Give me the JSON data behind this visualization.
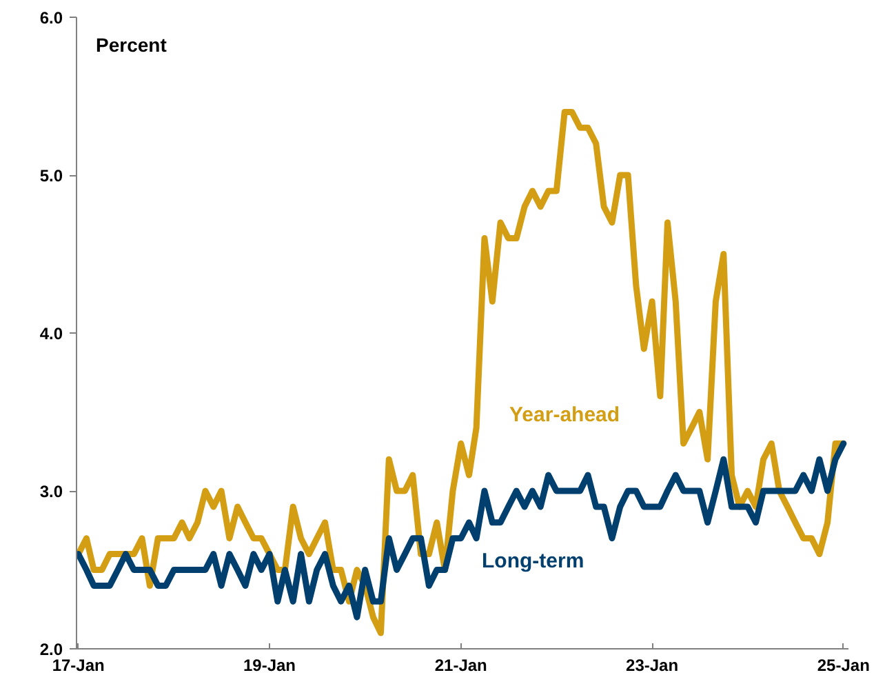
{
  "chart_data": {
    "type": "line",
    "ylabel": "Percent",
    "x": [
      "2017-01",
      "2017-02",
      "2017-03",
      "2017-04",
      "2017-05",
      "2017-06",
      "2017-07",
      "2017-08",
      "2017-09",
      "2017-10",
      "2017-11",
      "2017-12",
      "2018-01",
      "2018-02",
      "2018-03",
      "2018-04",
      "2018-05",
      "2018-06",
      "2018-07",
      "2018-08",
      "2018-09",
      "2018-10",
      "2018-11",
      "2018-12",
      "2019-01",
      "2019-02",
      "2019-03",
      "2019-04",
      "2019-05",
      "2019-06",
      "2019-07",
      "2019-08",
      "2019-09",
      "2019-10",
      "2019-11",
      "2019-12",
      "2020-01",
      "2020-02",
      "2020-03",
      "2020-04",
      "2020-05",
      "2020-06",
      "2020-07",
      "2020-08",
      "2020-09",
      "2020-10",
      "2020-11",
      "2020-12",
      "2021-01",
      "2021-02",
      "2021-03",
      "2021-04",
      "2021-05",
      "2021-06",
      "2021-07",
      "2021-08",
      "2021-09",
      "2021-10",
      "2021-11",
      "2021-12",
      "2022-01",
      "2022-02",
      "2022-03",
      "2022-04",
      "2022-05",
      "2022-06",
      "2022-07",
      "2022-08",
      "2022-09",
      "2022-10",
      "2022-11",
      "2022-12",
      "2023-01",
      "2023-02",
      "2023-03",
      "2023-04",
      "2023-05",
      "2023-06",
      "2023-07",
      "2023-08",
      "2023-09",
      "2023-10",
      "2023-11",
      "2023-12",
      "2024-01",
      "2024-02",
      "2024-03",
      "2024-04",
      "2024-05",
      "2024-06",
      "2024-07",
      "2024-08",
      "2024-09",
      "2024-10",
      "2024-11",
      "2024-12",
      "2025-01"
    ],
    "series": [
      {
        "name": "Year-ahead",
        "color": "#d39e14",
        "values": [
          2.6,
          2.7,
          2.5,
          2.5,
          2.6,
          2.6,
          2.6,
          2.6,
          2.7,
          2.4,
          2.7,
          2.7,
          2.7,
          2.8,
          2.7,
          2.8,
          3.0,
          2.9,
          3.0,
          2.7,
          2.9,
          2.8,
          2.7,
          2.7,
          2.6,
          2.5,
          2.5,
          2.9,
          2.7,
          2.6,
          2.7,
          2.8,
          2.5,
          2.5,
          2.3,
          2.5,
          2.4,
          2.2,
          2.1,
          3.2,
          3.0,
          3.0,
          3.1,
          2.6,
          2.6,
          2.8,
          2.5,
          3.0,
          3.3,
          3.1,
          3.4,
          4.6,
          4.2,
          4.7,
          4.6,
          4.6,
          4.8,
          4.9,
          4.8,
          4.9,
          4.9,
          5.4,
          5.4,
          5.3,
          5.3,
          5.2,
          4.8,
          4.7,
          5.0,
          5.0,
          4.3,
          3.9,
          4.2,
          3.6,
          4.7,
          4.2,
          3.3,
          3.4,
          3.5,
          3.2,
          4.2,
          4.5,
          3.1,
          2.9,
          3.0,
          2.9,
          3.2,
          3.3,
          3.0,
          2.9,
          2.8,
          2.7,
          2.7,
          2.6,
          2.8,
          3.3,
          3.3
        ]
      },
      {
        "name": "Long-term",
        "color": "#003f6e",
        "values": [
          2.6,
          2.5,
          2.4,
          2.4,
          2.4,
          2.5,
          2.6,
          2.5,
          2.5,
          2.5,
          2.4,
          2.4,
          2.5,
          2.5,
          2.5,
          2.5,
          2.5,
          2.6,
          2.4,
          2.6,
          2.5,
          2.4,
          2.6,
          2.5,
          2.6,
          2.3,
          2.5,
          2.3,
          2.6,
          2.3,
          2.5,
          2.6,
          2.4,
          2.3,
          2.4,
          2.2,
          2.5,
          2.3,
          2.3,
          2.7,
          2.5,
          2.6,
          2.7,
          2.7,
          2.4,
          2.5,
          2.5,
          2.7,
          2.7,
          2.8,
          2.7,
          3.0,
          2.8,
          2.8,
          2.9,
          3.0,
          2.9,
          3.0,
          2.9,
          3.1,
          3.0,
          3.0,
          3.0,
          3.0,
          3.1,
          2.9,
          2.9,
          2.7,
          2.9,
          3.0,
          3.0,
          2.9,
          2.9,
          2.9,
          3.0,
          3.1,
          3.0,
          3.0,
          3.0,
          2.8,
          3.0,
          3.2,
          2.9,
          2.9,
          2.9,
          2.8,
          3.0,
          3.0,
          3.0,
          3.0,
          3.0,
          3.1,
          3.0,
          3.2,
          3.0,
          3.2,
          3.3
        ]
      }
    ],
    "xlim": [
      "2016-12-25",
      "2025-01-20"
    ],
    "ylim": [
      2.0,
      6.0
    ],
    "yticks": [
      {
        "value": 2.0,
        "label": "2.0"
      },
      {
        "value": 3.0,
        "label": "3.0"
      },
      {
        "value": 4.0,
        "label": "4.0"
      },
      {
        "value": 5.0,
        "label": "5.0"
      },
      {
        "value": 6.0,
        "label": "6.0"
      }
    ],
    "xticks": [
      {
        "value": "2017-01",
        "label": "17-Jan"
      },
      {
        "value": "2019-01",
        "label": "19-Jan"
      },
      {
        "value": "2021-01",
        "label": "21-Jan"
      },
      {
        "value": "2023-01",
        "label": "23-Jan"
      },
      {
        "value": "2025-01",
        "label": "25-Jan"
      }
    ],
    "grid": false,
    "legend": false
  }
}
